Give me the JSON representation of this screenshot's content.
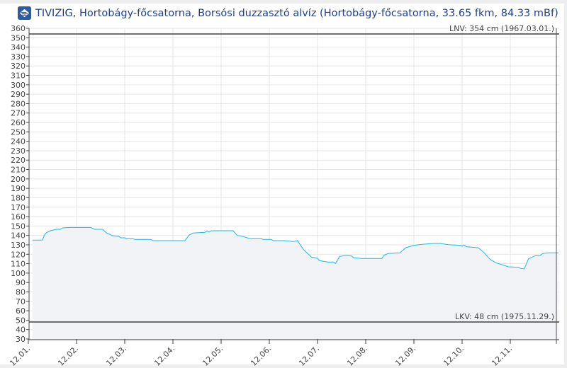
{
  "title": "TIVIZIG, Hortobágy-főcsatorna, Borsósi duzzasztó alvíz (Hortobágy-főcsatorna, 33.65 fkm, 84.33 mBf)",
  "logo_icon": "tivizig-logo-icon",
  "chart_data": {
    "type": "area",
    "title": "TIVIZIG, Hortobágy-főcsatorna, Borsósi duzzasztó alvíz (Hortobágy-főcsatorna, 33.65 fkm, 84.33 mBf)",
    "xlabel": "",
    "ylabel": "",
    "ylim": [
      30,
      360
    ],
    "xlim": [
      "12.01. 00:00",
      "12.12. 00:00"
    ],
    "grid": true,
    "yticks": [
      "30",
      "40",
      "50",
      "60",
      "70",
      "80",
      "90",
      "100",
      "110",
      "120",
      "130",
      "140",
      "150",
      "160",
      "170",
      "180",
      "190",
      "200",
      "210",
      "220",
      "230",
      "240",
      "250",
      "260",
      "270",
      "280",
      "290",
      "300",
      "310",
      "320",
      "330",
      "340",
      "350",
      "360"
    ],
    "xticks": [
      "12.01.",
      "12.02.",
      "12.03.",
      "12.04.",
      "12.05.",
      "12.06.",
      "12.07.",
      "12.08.",
      "12.09.",
      "12.10.",
      "12.11."
    ],
    "line_color": "#1ab8ee",
    "fill_color": "#f2f3f7",
    "reference_lines": [
      {
        "label": "LNV: 354 cm (1967.03.01.)",
        "value": 354,
        "color": "#6f6f6f"
      },
      {
        "label": "LKV: 48 cm (1975.11.29.)",
        "value": 48,
        "color": "#6f6f6f"
      }
    ],
    "series": [
      {
        "points": [
          [
            "12.01. 02:00",
            135
          ],
          [
            "12.01. 07:00",
            135
          ],
          [
            "12.01. 08:00",
            140.5
          ],
          [
            "12.01. 09:00",
            143
          ],
          [
            "12.01. 11:00",
            145
          ],
          [
            "12.01. 14:00",
            146.5
          ],
          [
            "12.01. 16:00",
            146.5
          ],
          [
            "12.01. 17:00",
            148
          ],
          [
            "12.01. 21:00",
            148.5
          ],
          [
            "12.02. 07:00",
            148.5
          ],
          [
            "12.02. 09:00",
            146.5
          ],
          [
            "12.02. 13:00",
            146.5
          ],
          [
            "12.02. 15:00",
            142.5
          ],
          [
            "12.02. 18:00",
            139.7
          ],
          [
            "12.02. 21:00",
            139
          ],
          [
            "12.02. 22:00",
            137.5
          ],
          [
            "12.03. 00:00",
            137.5
          ],
          [
            "12.03. 01:00",
            136.5
          ],
          [
            "12.03. 04:00",
            136.5
          ],
          [
            "12.03. 05:00",
            135.8
          ],
          [
            "12.03. 13:00",
            135.8
          ],
          [
            "12.03. 14:00",
            134.5
          ],
          [
            "12.04. 06:00",
            134.5
          ],
          [
            "12.04. 08:00",
            140.3
          ],
          [
            "12.04. 10:00",
            142.5
          ],
          [
            "12.04. 16:00",
            143.3
          ],
          [
            "12.04. 17:00",
            145
          ],
          [
            "12.04. 18:00",
            143.5
          ],
          [
            "12.04. 19:00",
            145
          ],
          [
            "12.05. 06:00",
            145
          ],
          [
            "12.05. 08:00",
            140
          ],
          [
            "12.05. 11:00",
            138.8
          ],
          [
            "12.05. 13:00",
            137.5
          ],
          [
            "12.05. 15:00",
            136.5
          ],
          [
            "12.05. 20:00",
            136.5
          ],
          [
            "12.05. 21:00",
            135.8
          ],
          [
            "12.06. 01:00",
            135.8
          ],
          [
            "12.06. 02:00",
            134.5
          ],
          [
            "12.06. 07:00",
            134.5
          ],
          [
            "12.06. 12:00",
            133.5
          ],
          [
            "12.06. 14:00",
            134.5
          ],
          [
            "12.06. 17:00",
            125
          ],
          [
            "12.06. 21:00",
            117
          ],
          [
            "12.07. 00:00",
            115.7
          ],
          [
            "12.07. 01:00",
            113.2
          ],
          [
            "12.07. 05:00",
            111.7
          ],
          [
            "12.07. 08:00",
            111.7
          ],
          [
            "12.07. 09:00",
            110.2
          ],
          [
            "12.07. 11:00",
            117.7
          ],
          [
            "12.07. 14:00",
            118.7
          ],
          [
            "12.07. 17:00",
            118.2
          ],
          [
            "12.07. 18:00",
            116.4
          ],
          [
            "12.07. 22:00",
            115.5
          ],
          [
            "12.08. 08:00",
            115.5
          ],
          [
            "12.08. 09:00",
            118.7
          ],
          [
            "12.08. 11:00",
            120.7
          ],
          [
            "12.08. 17:00",
            121.5
          ],
          [
            "12.08. 20:00",
            127
          ],
          [
            "12.09. 00:00",
            129.5
          ],
          [
            "12.09. 05:00",
            130.7
          ],
          [
            "12.09. 10:00",
            131.5
          ],
          [
            "12.09. 13:00",
            131.5
          ],
          [
            "12.09. 17:00",
            130.2
          ],
          [
            "12.09. 23:00",
            129.5
          ],
          [
            "12.10. 00:00",
            128.5
          ],
          [
            "12.10. 01:00",
            130
          ],
          [
            "12.10. 02:00",
            128
          ],
          [
            "12.10. 08:00",
            127
          ],
          [
            "12.10. 11:00",
            121.5
          ],
          [
            "12.10. 14:00",
            114.4
          ],
          [
            "12.10. 17:00",
            110.7
          ],
          [
            "12.10. 21:00",
            108.2
          ],
          [
            "12.10. 23:00",
            106.7
          ],
          [
            "12.11. 04:00",
            106.2
          ],
          [
            "12.11. 05:00",
            105
          ],
          [
            "12.11. 07:00",
            104.4
          ],
          [
            "12.11. 09:00",
            115
          ],
          [
            "12.11. 12:00",
            118.2
          ],
          [
            "12.11. 15:00",
            118.7
          ],
          [
            "12.11. 16:00",
            120.7
          ],
          [
            "12.11. 19:00",
            121.5
          ],
          [
            "12.12. 00:00",
            121.5
          ]
        ]
      }
    ]
  }
}
